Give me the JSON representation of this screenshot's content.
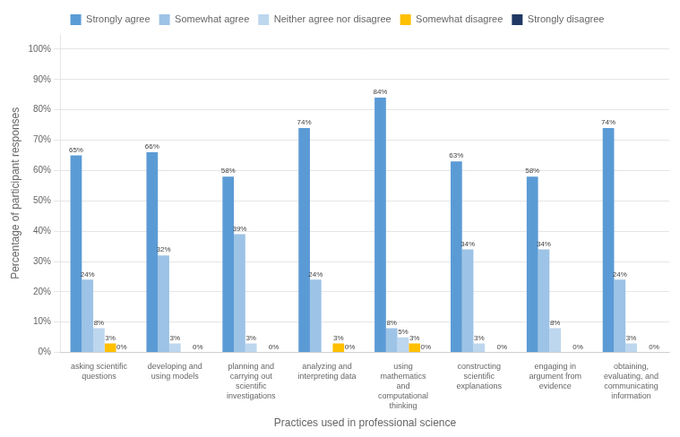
{
  "chart_data": {
    "type": "bar",
    "categories": [
      "asking scientific\nquestions",
      "developing and\nusing models",
      "planning and\ncarrying out\nscientific\ninvestigations",
      "analyzing and\ninterpreting data",
      "using\nmathematics\nand\ncomputational\nthinking",
      "constructing\nscientific\nexplanations",
      "engaging in\nargument from\nevidence",
      "obtaining,\nevaluating, and\ncommunicating\ninformation"
    ],
    "series": [
      {
        "name": "Strongly agree",
        "color": "#5b9bd5",
        "values": [
          65,
          66,
          58,
          74,
          84,
          63,
          58,
          74
        ],
        "value_labels": [
          "65%",
          "66%",
          "58%",
          "74%",
          "84%",
          "63%",
          "58%",
          "74%"
        ]
      },
      {
        "name": "Somewhat agree",
        "color": "#9dc3e6",
        "values": [
          24,
          32,
          39,
          24,
          8,
          34,
          34,
          24
        ],
        "value_labels": [
          "24%",
          "32%",
          "39%",
          "24%",
          "8%",
          "34%",
          "34%",
          "24%"
        ]
      },
      {
        "name": "Neither agree nor disagree",
        "color": "#bdd7ee",
        "values": [
          8,
          3,
          3,
          0,
          5,
          3,
          8,
          3
        ],
        "value_labels": [
          "8%",
          "3%",
          "3%",
          null,
          "5%",
          "3%",
          "8%",
          "3%"
        ]
      },
      {
        "name": "Somewhat disagree",
        "color": "#ffc000",
        "values": [
          3,
          0,
          0,
          3,
          3,
          0,
          0,
          0
        ],
        "value_labels": [
          "3%",
          null,
          null,
          "3%",
          "3%",
          null,
          null,
          null
        ]
      },
      {
        "name": "Strongly disagree",
        "color": "#1f3864",
        "values": [
          0,
          0,
          0,
          0,
          0,
          0,
          0,
          0
        ],
        "value_labels": [
          "0%",
          "0%",
          "0%",
          "0%",
          "0%",
          "0%",
          "0%",
          "0%"
        ]
      }
    ],
    "x_label": "Practices used in professional science",
    "y_label": "Percentage of participant responses",
    "ylim": [
      0,
      105
    ],
    "yticks": [
      {
        "value": 0,
        "label": "0%"
      },
      {
        "value": 10,
        "label": "10%"
      },
      {
        "value": 20,
        "label": "20%"
      },
      {
        "value": 30,
        "label": "30%"
      },
      {
        "value": 40,
        "label": "40%"
      },
      {
        "value": 50,
        "label": "50%"
      },
      {
        "value": 60,
        "label": "60%"
      },
      {
        "value": 70,
        "label": "70%"
      },
      {
        "value": 80,
        "label": "80%"
      },
      {
        "value": 90,
        "label": "90%"
      },
      {
        "value": 100,
        "label": "100%"
      }
    ],
    "grid": true,
    "legend": "top",
    "data_labels": true
  }
}
